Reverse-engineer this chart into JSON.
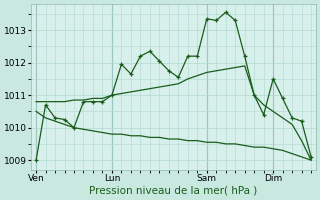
{
  "background_color": "#c8e8e0",
  "plot_bg": "#d8f0ec",
  "grid_color": "#b0d8d0",
  "line_color": "#1a5c1a",
  "xlabel": "Pression niveau de la mer( hPa )",
  "yticks": [
    1009,
    1010,
    1011,
    1012,
    1013
  ],
  "ylim": [
    1008.7,
    1013.8
  ],
  "xtick_labels": [
    "Ven",
    "Lun",
    "Sam",
    "Dim"
  ],
  "xtick_positions": [
    0,
    8,
    18,
    25
  ],
  "total_points": 30,
  "vline_positions": [
    0,
    8,
    18,
    25
  ],
  "line1": [
    1009.0,
    1010.7,
    1010.3,
    1010.25,
    1010.0,
    1010.8,
    1010.8,
    1010.8,
    1011.0,
    1011.95,
    1011.65,
    1012.2,
    1012.35,
    1012.05,
    1011.75,
    1011.55,
    1012.2,
    1012.2,
    1013.35,
    1013.3,
    1013.55,
    1013.3,
    1012.2,
    1011.0,
    1010.4,
    1011.5,
    1010.9,
    1010.3,
    1010.2,
    1009.1
  ],
  "line2": [
    1010.8,
    1010.8,
    1010.8,
    1010.8,
    1010.85,
    1010.85,
    1010.9,
    1010.9,
    1011.0,
    1011.05,
    1011.1,
    1011.15,
    1011.2,
    1011.25,
    1011.3,
    1011.35,
    1011.5,
    1011.6,
    1011.7,
    1011.75,
    1011.8,
    1011.85,
    1011.9,
    1011.0,
    1010.7,
    1010.5,
    1010.3,
    1010.1,
    1009.6,
    1009.0
  ],
  "line3": [
    1010.5,
    1010.3,
    1010.2,
    1010.1,
    1010.0,
    1009.95,
    1009.9,
    1009.85,
    1009.8,
    1009.8,
    1009.75,
    1009.75,
    1009.7,
    1009.7,
    1009.65,
    1009.65,
    1009.6,
    1009.6,
    1009.55,
    1009.55,
    1009.5,
    1009.5,
    1009.45,
    1009.4,
    1009.4,
    1009.35,
    1009.3,
    1009.2,
    1009.1,
    1009.0
  ]
}
